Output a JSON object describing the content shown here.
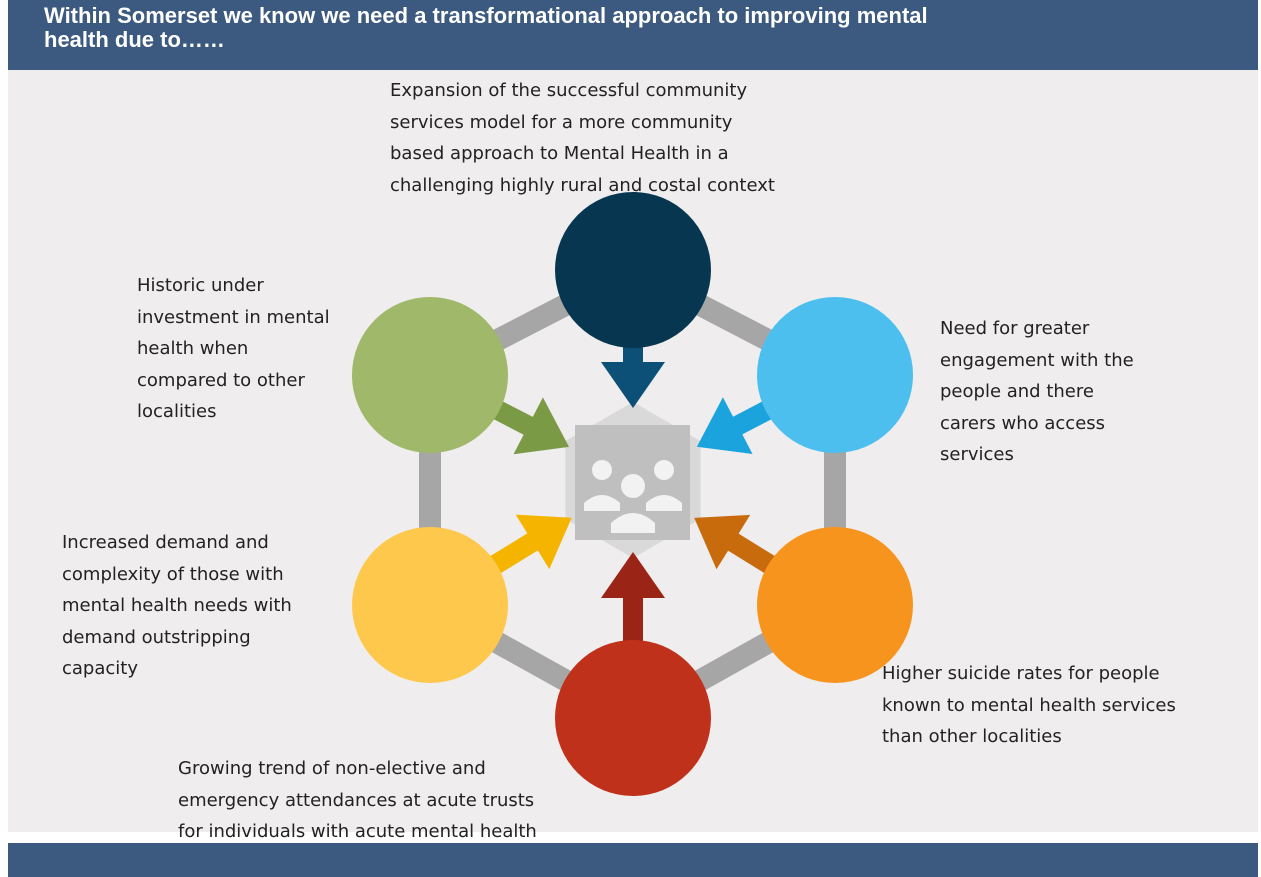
{
  "header": {
    "title_lines": [
      "Within  Somerset we know we need a transformational approach to improving mental",
      "health due to……"
    ]
  },
  "nodes": [
    {
      "lines": [
        "Expansion of the successful community",
        "services model for a more  community",
        "based approach to Mental Health in a",
        "challenging highly rural and costal context"
      ]
    },
    {
      "lines": [
        "Need for greater",
        "engagement with the",
        "people and there",
        "carers who access",
        "services"
      ]
    },
    {
      "lines": [
        "Higher suicide rates for people",
        "known to mental health services",
        "than other localities"
      ]
    },
    {
      "lines": [
        "Growing trend of non-elective and",
        "emergency attendances at acute trusts",
        "for individuals with acute mental health"
      ]
    },
    {
      "lines": [
        "Increased demand and",
        "complexity of those with",
        "mental health needs with",
        "demand outstripping",
        "capacity"
      ]
    },
    {
      "lines": [
        "Historic under",
        "investment in mental",
        "health when",
        "compared to other",
        "localities"
      ]
    }
  ]
}
